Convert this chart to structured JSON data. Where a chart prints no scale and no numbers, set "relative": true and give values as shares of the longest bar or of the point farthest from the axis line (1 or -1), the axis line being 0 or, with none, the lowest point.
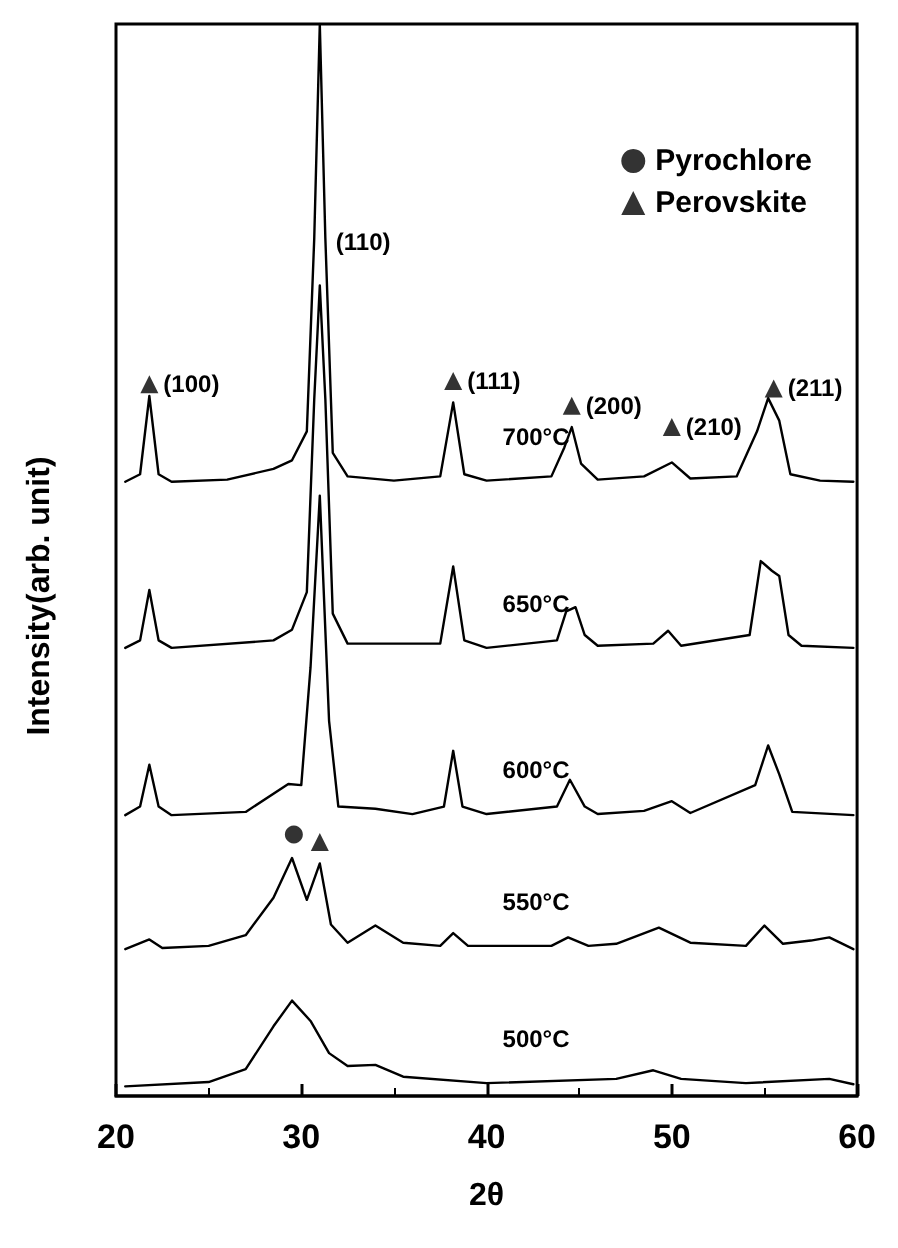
{
  "chart_data": {
    "type": "line",
    "xlabel": "2θ",
    "ylabel": "Intensity(arb. unit)",
    "relative": true,
    "xlim": [
      20,
      60
    ],
    "xticks": [
      20,
      30,
      40,
      50,
      60
    ],
    "tick_labels": "x",
    "grid": false,
    "legend": "top right",
    "line_style": "solid",
    "series": [
      {
        "color": "#000000",
        "marker": "none",
        "x": [
          20.5,
          21.3,
          21.8,
          22.3,
          23,
          26,
          28.5,
          29.5,
          30.3,
          30.7,
          31,
          31.3,
          31.7,
          32.5,
          35,
          37.5,
          38.2,
          38.8,
          40,
          43.5,
          44.2,
          44.6,
          45.1,
          46,
          48.5,
          50,
          51,
          53.5,
          54.6,
          55.2,
          55.8,
          56.4,
          58,
          59.8
        ],
        "values": [
          0.573,
          0.58,
          0.653,
          0.58,
          0.573,
          0.575,
          0.585,
          0.593,
          0.62,
          0.8,
          1,
          0.8,
          0.6,
          0.578,
          0.574,
          0.578,
          0.647,
          0.58,
          0.574,
          0.578,
          0.605,
          0.624,
          0.59,
          0.575,
          0.578,
          0.591,
          0.576,
          0.578,
          0.62,
          0.651,
          0.63,
          0.58,
          0.574,
          0.573
        ]
      },
      {
        "color": "#000000",
        "marker": "none",
        "x": [
          20.5,
          21.3,
          21.8,
          22.3,
          23,
          28.5,
          29.5,
          30.3,
          30.7,
          31,
          31.3,
          31.7,
          32.5,
          37.5,
          38.2,
          38.8,
          40,
          43.8,
          44.3,
          44.8,
          45.3,
          46,
          49,
          49.8,
          50.5,
          54.2,
          54.8,
          55.4,
          55.8,
          56.3,
          57,
          59.8
        ],
        "values": [
          0.418,
          0.425,
          0.472,
          0.425,
          0.418,
          0.425,
          0.435,
          0.47,
          0.65,
          0.756,
          0.65,
          0.45,
          0.422,
          0.422,
          0.494,
          0.425,
          0.418,
          0.425,
          0.452,
          0.456,
          0.43,
          0.42,
          0.422,
          0.434,
          0.42,
          0.43,
          0.499,
          0.49,
          0.485,
          0.43,
          0.42,
          0.418
        ]
      },
      {
        "color": "#000000",
        "marker": "none",
        "x": [
          20.5,
          21.3,
          21.8,
          22.3,
          23,
          27,
          29.3,
          30,
          30.5,
          31,
          31.5,
          32,
          34,
          36,
          37.7,
          38.2,
          38.7,
          40,
          43.8,
          44.5,
          45.3,
          46,
          48.5,
          50,
          51,
          54.5,
          55.2,
          55.8,
          56.5,
          59.8
        ],
        "values": [
          0.262,
          0.27,
          0.309,
          0.27,
          0.262,
          0.265,
          0.291,
          0.29,
          0.4,
          0.56,
          0.35,
          0.27,
          0.268,
          0.263,
          0.27,
          0.322,
          0.27,
          0.263,
          0.27,
          0.295,
          0.27,
          0.263,
          0.266,
          0.275,
          0.264,
          0.29,
          0.327,
          0.3,
          0.265,
          0.262
        ]
      },
      {
        "color": "#000000",
        "marker": "none",
        "x": [
          20.5,
          21.8,
          22.5,
          25,
          27,
          28.5,
          29.5,
          30.3,
          31,
          31.6,
          32.5,
          34,
          35.5,
          37.5,
          38.2,
          39,
          43.5,
          44.4,
          45.5,
          47,
          49.3,
          51,
          54,
          55,
          56,
          57.5,
          58.5,
          59.8
        ],
        "values": [
          0.137,
          0.146,
          0.138,
          0.14,
          0.15,
          0.185,
          0.222,
          0.183,
          0.217,
          0.16,
          0.143,
          0.159,
          0.143,
          0.14,
          0.152,
          0.14,
          0.14,
          0.148,
          0.14,
          0.142,
          0.157,
          0.143,
          0.14,
          0.159,
          0.142,
          0.145,
          0.148,
          0.137
        ]
      },
      {
        "color": "#000000",
        "marker": "none",
        "x": [
          20.5,
          25,
          27,
          28.5,
          29.5,
          30.5,
          31.5,
          32.5,
          34,
          35.5,
          40,
          47,
          49,
          50.5,
          54,
          58.5,
          59.8
        ],
        "values": [
          0.009,
          0.013,
          0.025,
          0.065,
          0.089,
          0.07,
          0.04,
          0.028,
          0.029,
          0.018,
          0.012,
          0.016,
          0.024,
          0.016,
          0.012,
          0.016,
          0.011
        ]
      },
      {
        "type": "scatter",
        "name": "Pyrochlore",
        "color": "#000000",
        "marker": "circle",
        "x": [
          29.6
        ],
        "values": [
          0.244
        ]
      },
      {
        "type": "scatter",
        "name": "Perovskite",
        "color": "#000000",
        "marker": "triangle",
        "x": [
          21.8,
          38.2,
          44.6,
          50,
          55.5,
          31
        ],
        "values": [
          0.664,
          0.667,
          0.644,
          0.624,
          0.66,
          0.237
        ]
      }
    ],
    "annotations": [
      {
        "text": "(100)",
        "x": 21.8,
        "y": 0.664
      },
      {
        "text": "(110)",
        "x": 31,
        "y": 0.756
      },
      {
        "text": "(111)",
        "x": 38.2,
        "y": 0.667
      },
      {
        "text": "(200)",
        "x": 44.6,
        "y": 0.644
      },
      {
        "text": "(210)",
        "x": 50,
        "y": 0.624
      },
      {
        "text": "(211)",
        "x": 55.5,
        "y": 0.66
      },
      {
        "text": "700°C",
        "x": 40,
        "y": 0.574
      },
      {
        "text": "650°C",
        "x": 40,
        "y": 0.418
      },
      {
        "text": "600°C",
        "x": 40,
        "y": 0.263
      },
      {
        "text": "550°C",
        "x": 40,
        "y": 0.14
      },
      {
        "text": "500°C",
        "x": 40,
        "y": 0.012
      }
    ]
  }
}
